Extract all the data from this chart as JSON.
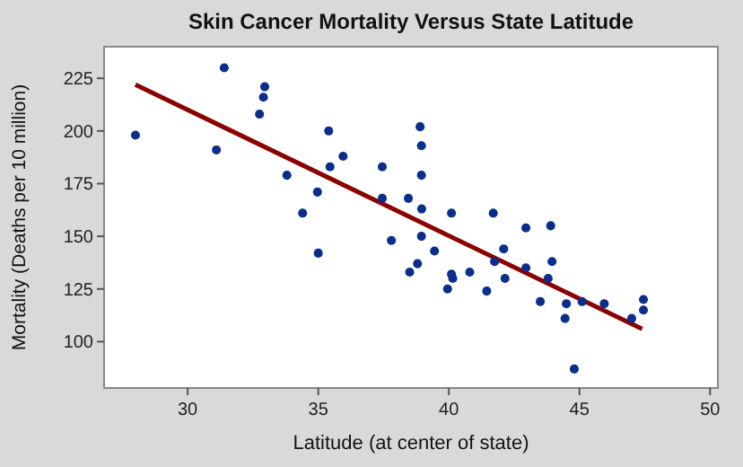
{
  "chart_data": {
    "type": "scatter",
    "title": "Skin Cancer Mortality Versus State Latitude",
    "xlabel": "Latitude (at center of state)",
    "ylabel": "Mortality (Deaths per 10 million)",
    "xlim": [
      26.8,
      50.3
    ],
    "xticks": [
      30,
      35,
      40,
      45,
      50
    ],
    "ylim": [
      78,
      240
    ],
    "yticks": [
      100,
      125,
      150,
      175,
      200,
      225
    ],
    "series": [
      {
        "type": "line",
        "color": "#8b0000",
        "x": [
          28.0,
          47.4
        ],
        "values": [
          222,
          106
        ]
      },
      {
        "marker": "circle",
        "color": "#0b2d8c",
        "x": [
          28.0,
          31.4,
          31.1,
          32.95,
          32.9,
          32.75,
          33.8,
          35.4,
          35.95,
          35.45,
          34.97,
          34.4,
          37.45,
          37.45,
          38.45,
          38.9,
          38.95,
          38.95,
          38.96,
          40.1,
          41.7,
          42.95,
          43.9,
          37.8,
          38.95,
          39.45,
          38.8,
          38.5,
          40.1,
          40.15,
          39.95,
          40.8,
          41.45,
          42.1,
          41.75,
          42.15,
          42.95,
          43.95,
          43.8,
          43.5,
          44.5,
          44.45,
          45.1,
          45.95,
          47.0,
          47.45,
          47.45,
          35.0,
          44.8
        ],
        "values": [
          198,
          230,
          191,
          221,
          216,
          208,
          179,
          200,
          188,
          183,
          171,
          161,
          183,
          168,
          168,
          202,
          193,
          179,
          163,
          161,
          161,
          154,
          155,
          148,
          150,
          143,
          137,
          133,
          132,
          130,
          125,
          133,
          124,
          144,
          138,
          130,
          135,
          138,
          130,
          119,
          118,
          111,
          119,
          118,
          111,
          120,
          115,
          142,
          87
        ]
      }
    ]
  }
}
